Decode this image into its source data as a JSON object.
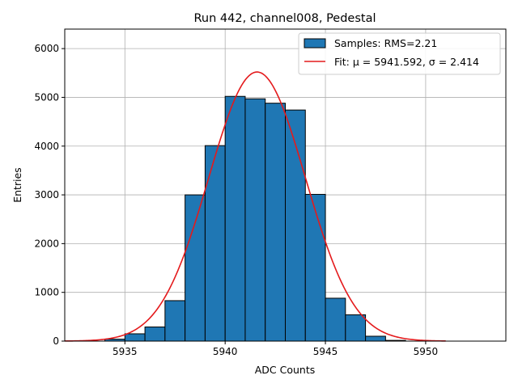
{
  "chart_data": {
    "type": "bar",
    "title": "Run 442, channel008, Pedestal",
    "xlabel": "ADC Counts",
    "ylabel": "Entries",
    "xlim": [
      5932,
      5954
    ],
    "ylim": [
      0,
      6400
    ],
    "xticks": [
      5935,
      5940,
      5945,
      5950
    ],
    "yticks": [
      0,
      1000,
      2000,
      3000,
      4000,
      5000,
      6000
    ],
    "grid": true,
    "legend_position": "top-right",
    "histogram": {
      "name": "Samples: RMS=2.21",
      "color": "#1f77b4",
      "edge_color": "#000000",
      "bin_width": 1,
      "bins": [
        {
          "left": 5934,
          "value": 40
        },
        {
          "left": 5935,
          "value": 150
        },
        {
          "left": 5936,
          "value": 290
        },
        {
          "left": 5937,
          "value": 830
        },
        {
          "left": 5938,
          "value": 3000
        },
        {
          "left": 5939,
          "value": 4010
        },
        {
          "left": 5940,
          "value": 5020
        },
        {
          "left": 5941,
          "value": 4970
        },
        {
          "left": 5942,
          "value": 4880
        },
        {
          "left": 5943,
          "value": 4740
        },
        {
          "left": 5944,
          "value": 3010
        },
        {
          "left": 5945,
          "value": 880
        },
        {
          "left": 5946,
          "value": 540
        },
        {
          "left": 5947,
          "value": 100
        },
        {
          "left": 5948,
          "value": 15
        }
      ]
    },
    "fit": {
      "name": "Fit: μ = 5941.592, σ = 2.414",
      "color": "#e41a1c",
      "mu": 5941.592,
      "sigma": 2.414,
      "amplitude": 5520,
      "x_range": [
        5932,
        5951
      ]
    }
  }
}
